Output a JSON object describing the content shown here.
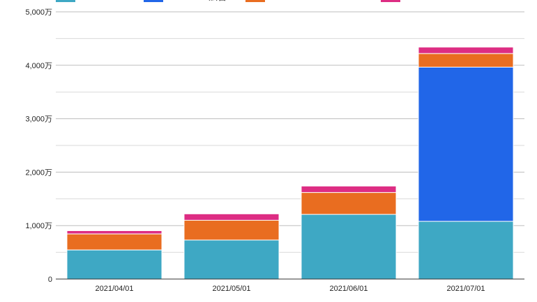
{
  "chart_data": {
    "type": "bar",
    "stacked": true,
    "categories": [
      "2021/04/01",
      "2021/05/01",
      "2021/06/01",
      "2021/07/01"
    ],
    "series": [
      {
        "name": "",
        "color": "#3ea8c4",
        "values": [
          545,
          730,
          1210,
          1080
        ]
      },
      {
        "name": "Facebook広告",
        "color": "#2166e8",
        "values": [
          0,
          0,
          0,
          2885
        ]
      },
      {
        "name": "",
        "color": "#e96d20",
        "values": [
          300,
          370,
          410,
          255
        ]
      },
      {
        "name": "",
        "color": "#dd2d83",
        "values": [
          60,
          120,
          120,
          120
        ]
      }
    ],
    "ylim": [
      0,
      5000
    ],
    "yticks": [
      0,
      1000,
      2000,
      3000,
      4000,
      5000
    ],
    "ytick_labels": [
      "0",
      "1,000万",
      "2,000万",
      "3,000万",
      "4,000万",
      "5,000万"
    ],
    "grid": true,
    "legend_position": "top",
    "title": "",
    "xlabel": "",
    "ylabel": ""
  }
}
